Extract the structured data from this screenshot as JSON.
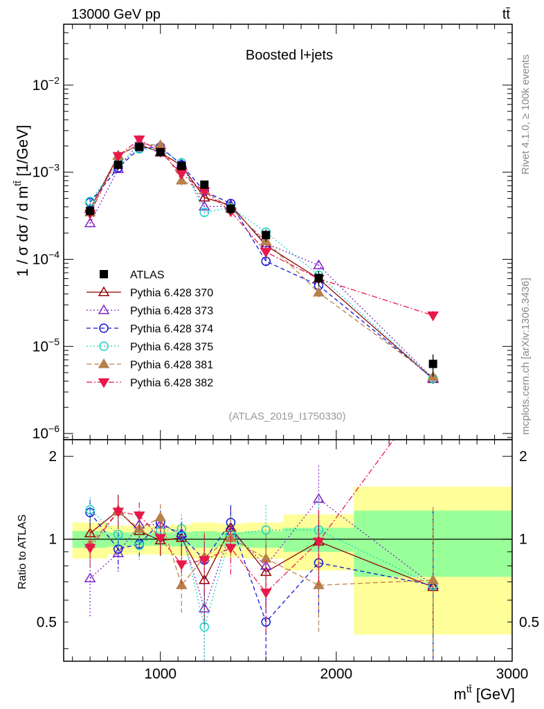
{
  "header": {
    "left_label": "13000 GeV pp",
    "right_label": "tt̄"
  },
  "side_labels": {
    "rivet": "Rivet 4.1.0, ≥ 100k events",
    "mcplots": "mcplots.cern.ch [arXiv:1306.3436]"
  },
  "chart_data": {
    "type": "scatter",
    "title": "Boosted l+jets",
    "analysis_id": "(ATLAS_2019_I1750330)",
    "xlabel": "m^{tt̄} [GeV]",
    "xlabel_main": "m",
    "xlabel_sup": "tt̄",
    "xlabel_unit": " [GeV]",
    "ylabel": "1 / σ dσ / d m^{tt̄} [1/GeV]",
    "ylabel_main": "1 / σ dσ / d m",
    "ylabel_sup": "tt̄",
    "ylabel_unit": " [1/GeV]",
    "ratio_ylabel": "Ratio to ATLAS",
    "xlim": [
      450,
      3000
    ],
    "ylim": [
      8.5e-07,
      0.05
    ],
    "yscale": "log",
    "ratio_ylim": [
      0.36,
      2.3
    ],
    "ratio_yscale": "log",
    "x_ticks": [
      {
        "value": 1000,
        "label": "1000"
      },
      {
        "value": 2000,
        "label": "2000"
      },
      {
        "value": 3000,
        "label": "3000"
      }
    ],
    "y_ticks": [
      {
        "value": 1e-06,
        "base": "10",
        "exp": "−6"
      },
      {
        "value": 1e-05,
        "base": "10",
        "exp": "−5"
      },
      {
        "value": 0.0001,
        "base": "10",
        "exp": "−4"
      },
      {
        "value": 0.001,
        "base": "10",
        "exp": "−3"
      },
      {
        "value": 0.01,
        "base": "10",
        "exp": "−2"
      }
    ],
    "ratio_ticks": [
      {
        "value": 0.5,
        "label": "0.5"
      },
      {
        "value": 1,
        "label": "1"
      },
      {
        "value": 2,
        "label": "2"
      }
    ],
    "bins": [
      [
        500,
        700
      ],
      [
        700,
        820
      ],
      [
        820,
        940
      ],
      [
        940,
        1060
      ],
      [
        1060,
        1180
      ],
      [
        1180,
        1320
      ],
      [
        1320,
        1480
      ],
      [
        1480,
        1700
      ],
      [
        1700,
        2100
      ],
      [
        2100,
        3000
      ]
    ],
    "data": {
      "name": "ATLAS",
      "x": [
        600,
        760,
        880,
        1000,
        1120,
        1250,
        1400,
        1600,
        1900,
        2550
      ],
      "y": [
        0.00036,
        0.00122,
        0.00195,
        0.0017,
        0.00118,
        0.00072,
        0.00038,
        0.00019,
        6.1e-05,
        6.3e-06
      ],
      "err": [
        5e-05,
        0.00015,
        0.0002,
        0.00018,
        0.00013,
        8e-05,
        5e-05,
        3e-05,
        1.2e-05,
        1.8e-06
      ],
      "stat_band": [
        0.07,
        0.06,
        0.055,
        0.055,
        0.06,
        0.07,
        0.06,
        0.07,
        0.1,
        0.27
      ],
      "total_band": [
        0.15,
        0.12,
        0.12,
        0.12,
        0.13,
        0.15,
        0.14,
        0.15,
        0.23,
        0.55
      ],
      "color": "#000000"
    },
    "series": [
      {
        "name": "Pythia 6.428 370",
        "marker": "triangle-up-open",
        "dash": "",
        "color": "#8b0000",
        "x": [
          600,
          760,
          880,
          1000,
          1120,
          1250,
          1400,
          1600,
          1900,
          2550
        ],
        "ratio": [
          1.05,
          1.27,
          1.07,
          0.99,
          1.01,
          0.71,
          1.1,
          0.76,
          0.98,
          0.67
        ],
        "rerr": [
          0.15,
          0.18,
          0.14,
          0.12,
          0.14,
          0.22,
          0.2,
          0.2,
          0.28,
          0.6
        ]
      },
      {
        "name": "Pythia 6.428 373",
        "marker": "triangle-up-open",
        "dash": "2,3",
        "color": "#7b22c8",
        "x": [
          600,
          760,
          880,
          1000,
          1120,
          1250,
          1400,
          1600,
          1900,
          2550
        ],
        "ratio": [
          0.72,
          0.89,
          1.13,
          1.13,
          1.05,
          0.56,
          1.07,
          0.8,
          1.4,
          0.68
        ],
        "rerr": [
          0.2,
          0.14,
          0.12,
          0.12,
          0.14,
          0.22,
          0.2,
          0.22,
          0.45,
          0.6
        ]
      },
      {
        "name": "Pythia 6.428 374",
        "marker": "circle-open",
        "dash": "6,4",
        "color": "#1414d2",
        "x": [
          600,
          760,
          880,
          1000,
          1120,
          1250,
          1400,
          1600,
          1900,
          2550
        ],
        "ratio": [
          1.25,
          0.92,
          0.96,
          1.15,
          1.03,
          0.84,
          1.15,
          0.5,
          0.82,
          0.68
        ],
        "rerr": [
          0.14,
          0.14,
          0.1,
          0.12,
          0.12,
          0.2,
          0.18,
          0.2,
          0.3,
          0.6
        ]
      },
      {
        "name": "Pythia 6.428 375",
        "marker": "circle-open",
        "dash": "2,3",
        "color": "#18d2c2",
        "x": [
          600,
          760,
          880,
          1000,
          1120,
          1250,
          1400,
          1600,
          1900,
          2550
        ],
        "ratio": [
          1.28,
          1.04,
          0.95,
          1.07,
          1.09,
          0.48,
          1.04,
          1.08,
          1.08,
          0.68
        ],
        "rerr": [
          0.14,
          0.14,
          0.12,
          0.12,
          0.14,
          0.14,
          0.18,
          0.25,
          0.3,
          0.6
        ]
      },
      {
        "name": "Pythia 6.428 381",
        "marker": "triangle-up-filled",
        "dash": "7,4",
        "color": "#b8804a",
        "x": [
          600,
          760,
          880,
          1000,
          1120,
          1250,
          1400,
          1600,
          1900,
          2550
        ],
        "ratio": [
          0.96,
          1.26,
          1.09,
          1.2,
          0.68,
          0.86,
          1.01,
          0.85,
          0.68,
          0.71
        ],
        "rerr": [
          0.14,
          0.14,
          0.12,
          0.14,
          0.14,
          0.2,
          0.18,
          0.2,
          0.22,
          0.6
        ]
      },
      {
        "name": "Pythia 6.428 382",
        "marker": "triangle-down-filled",
        "dash": "8,3,2,3",
        "color": "#e8184a",
        "x": [
          600,
          760,
          880,
          1000,
          1120,
          1250,
          1400,
          1600,
          1900,
          2550
        ],
        "ratio": [
          0.93,
          1.26,
          1.22,
          1.01,
          0.81,
          0.84,
          0.93,
          0.64,
          0.98,
          3.6
        ],
        "rerr": [
          0.14,
          0.14,
          0.14,
          0.14,
          0.14,
          0.2,
          0.2,
          0.2,
          0.3,
          1.3
        ]
      }
    ]
  }
}
